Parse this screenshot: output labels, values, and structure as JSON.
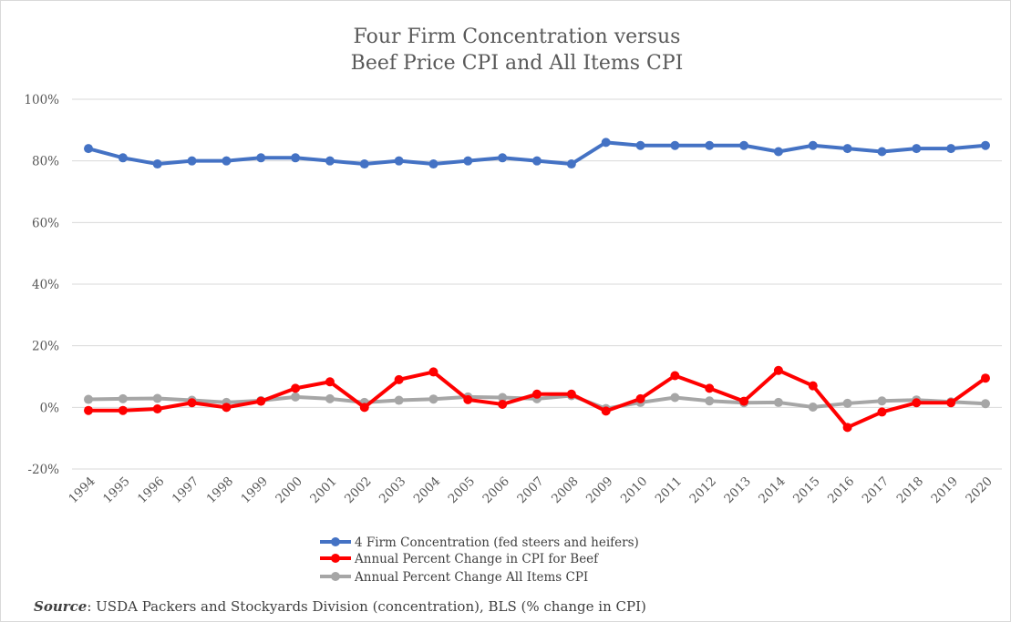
{
  "chart_data": {
    "type": "line",
    "title": [
      "Four Firm Concentration versus",
      "Beef Price CPI and All Items CPI"
    ],
    "xlabel": "",
    "ylabel": "",
    "ylim": [
      -20,
      100
    ],
    "yticks": [
      "-20%",
      "0%",
      "20%",
      "40%",
      "60%",
      "80%",
      "100%"
    ],
    "ytick_values": [
      -20,
      0,
      20,
      40,
      60,
      80,
      100
    ],
    "grid": true,
    "legend_position": "bottom",
    "categories": [
      "1994",
      "1995",
      "1996",
      "1997",
      "1998",
      "1999",
      "2000",
      "2001",
      "2002",
      "2003",
      "2004",
      "2005",
      "2006",
      "2007",
      "2008",
      "2009",
      "2010",
      "2011",
      "2012",
      "2013",
      "2014",
      "2015",
      "2016",
      "2017",
      "2018",
      "2019",
      "2020"
    ],
    "series": [
      {
        "name": "4 Firm Concentration (fed steers and heifers)",
        "color": "#4472c4",
        "values": [
          84,
          81,
          79,
          80,
          80,
          81,
          81,
          80,
          79,
          80,
          79,
          80,
          81,
          80,
          79,
          86,
          85,
          85,
          85,
          85,
          83,
          85,
          84,
          83,
          84,
          84,
          85
        ]
      },
      {
        "name": "Annual Percent Change in CPI for Beef",
        "color": "#ff0000",
        "values": [
          -1,
          -1,
          -0.5,
          1.5,
          0,
          2,
          6.2,
          8.3,
          0,
          9,
          11.5,
          2.5,
          1,
          4.3,
          4.3,
          -1.2,
          2.8,
          10.3,
          6.2,
          2,
          12,
          7,
          -6.5,
          -1.5,
          1.5,
          1.5,
          9.5
        ]
      },
      {
        "name": "Annual Percent Change All Items CPI",
        "color": "#a6a6a6",
        "values": [
          2.6,
          2.8,
          2.9,
          2.3,
          1.6,
          2.2,
          3.4,
          2.8,
          1.6,
          2.3,
          2.7,
          3.4,
          3.2,
          2.8,
          3.8,
          -0.4,
          1.6,
          3.2,
          2.1,
          1.5,
          1.6,
          0.1,
          1.3,
          2.1,
          2.4,
          1.8,
          1.2
        ]
      }
    ]
  },
  "source_note": {
    "label": "Source",
    "text": ": USDA Packers and Stockyards Division (concentration), BLS (% change in CPI)"
  }
}
